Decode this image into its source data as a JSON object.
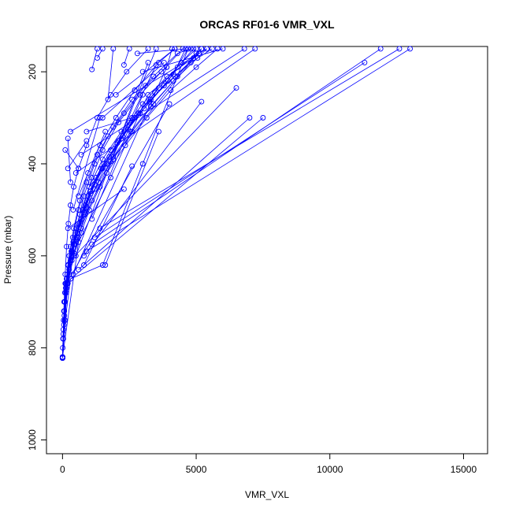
{
  "chart_data": {
    "type": "line",
    "title": "ORCAS RF01-6 VMR_VXL",
    "xlabel": "VMR_VXL",
    "ylabel": "Pressure (mbar)",
    "xlim": [
      -600,
      15900
    ],
    "ylim": [
      1030,
      145
    ],
    "y_reversed": true,
    "grid": false,
    "legend": "none",
    "xticks": [
      {
        "value": 0,
        "label": "0"
      },
      {
        "value": 5000,
        "label": "5000"
      },
      {
        "value": 10000,
        "label": "10000"
      },
      {
        "value": 15000,
        "label": "15000"
      }
    ],
    "yticks": [
      {
        "value": 200,
        "label": "200"
      },
      {
        "value": 400,
        "label": "400"
      },
      {
        "value": 600,
        "label": "600"
      },
      {
        "value": 800,
        "label": "800"
      },
      {
        "value": 1000,
        "label": "1000"
      }
    ],
    "color": "#0000ff",
    "series": [
      {
        "values": [
          [
            0,
            820
          ],
          [
            10,
            800
          ],
          [
            30,
            760
          ],
          [
            60,
            700
          ],
          [
            100,
            640
          ],
          [
            150,
            580
          ],
          [
            220,
            530
          ],
          [
            300,
            490
          ],
          [
            420,
            450
          ],
          [
            600,
            410
          ],
          [
            900,
            360
          ],
          [
            1300,
            300
          ],
          [
            1800,
            250
          ],
          [
            2400,
            200
          ],
          [
            3200,
            150
          ]
        ]
      },
      {
        "values": [
          [
            0,
            822
          ],
          [
            20,
            780
          ],
          [
            50,
            720
          ],
          [
            120,
            660
          ],
          [
            250,
            600
          ],
          [
            420,
            540
          ],
          [
            650,
            480
          ],
          [
            950,
            420
          ],
          [
            1400,
            360
          ],
          [
            2000,
            300
          ],
          [
            2700,
            240
          ],
          [
            3600,
            180
          ],
          [
            4200,
            150
          ]
        ]
      },
      {
        "values": [
          [
            0,
            820
          ],
          [
            40,
            740
          ],
          [
            90,
            680
          ],
          [
            200,
            620
          ],
          [
            380,
            560
          ],
          [
            600,
            500
          ],
          [
            900,
            440
          ],
          [
            1300,
            380
          ],
          [
            1900,
            320
          ],
          [
            2600,
            260
          ],
          [
            3400,
            210
          ],
          [
            4300,
            160
          ],
          [
            4800,
            150
          ]
        ]
      },
      {
        "values": [
          [
            0,
            821
          ],
          [
            30,
            770
          ],
          [
            80,
            700
          ],
          [
            180,
            640
          ],
          [
            330,
            590
          ],
          [
            520,
            540
          ],
          [
            800,
            470
          ],
          [
            1200,
            400
          ],
          [
            1700,
            340
          ],
          [
            2300,
            290
          ],
          [
            3100,
            230
          ],
          [
            3900,
            190
          ],
          [
            4100,
            150
          ]
        ]
      },
      {
        "values": [
          [
            0,
            822
          ],
          [
            50,
            750
          ],
          [
            150,
            670
          ],
          [
            300,
            610
          ],
          [
            500,
            560
          ],
          [
            750,
            500
          ],
          [
            1100,
            430
          ],
          [
            1500,
            370
          ],
          [
            2100,
            310
          ],
          [
            2900,
            250
          ],
          [
            3700,
            200
          ],
          [
            4500,
            150
          ]
        ]
      },
      {
        "values": [
          [
            0,
            820
          ],
          [
            100,
            680
          ],
          [
            220,
            620
          ],
          [
            400,
            570
          ],
          [
            650,
            510
          ],
          [
            1000,
            450
          ],
          [
            1500,
            390
          ],
          [
            2200,
            330
          ],
          [
            3000,
            270
          ],
          [
            3900,
            210
          ],
          [
            4900,
            170
          ],
          [
            5200,
            150
          ]
        ]
      },
      {
        "values": [
          [
            0,
            822
          ],
          [
            60,
            720
          ],
          [
            160,
            650
          ],
          [
            350,
            590
          ],
          [
            600,
            530
          ],
          [
            950,
            470
          ],
          [
            1450,
            410
          ],
          [
            2100,
            350
          ],
          [
            2900,
            290
          ],
          [
            3800,
            230
          ],
          [
            4800,
            180
          ],
          [
            5600,
            150
          ]
        ]
      },
      {
        "values": [
          [
            0,
            820
          ],
          [
            150,
            650
          ],
          [
            330,
            600
          ],
          [
            550,
            550
          ],
          [
            850,
            490
          ],
          [
            1250,
            430
          ],
          [
            1800,
            370
          ],
          [
            2500,
            310
          ],
          [
            3300,
            260
          ],
          [
            4200,
            210
          ],
          [
            5100,
            160
          ]
        ]
      },
      {
        "values": [
          [
            0,
            821
          ],
          [
            90,
            700
          ],
          [
            250,
            630
          ],
          [
            450,
            575
          ],
          [
            700,
            520
          ],
          [
            1050,
            460
          ],
          [
            1550,
            400
          ],
          [
            2250,
            340
          ],
          [
            3050,
            280
          ],
          [
            3950,
            220
          ],
          [
            4700,
            150
          ]
        ]
      },
      {
        "values": [
          [
            0,
            822
          ],
          [
            80,
            740
          ],
          [
            200,
            660
          ],
          [
            420,
            600
          ],
          [
            700,
            540
          ],
          [
            1100,
            480
          ],
          [
            1650,
            420
          ],
          [
            2350,
            360
          ],
          [
            3150,
            300
          ],
          [
            4050,
            240
          ],
          [
            5000,
            190
          ],
          [
            5800,
            150
          ]
        ]
      },
      {
        "values": [
          [
            0,
            820
          ],
          [
            30,
            780
          ],
          [
            70,
            730
          ],
          [
            140,
            680
          ],
          [
            260,
            640
          ],
          [
            450,
            595
          ],
          [
            700,
            550
          ],
          [
            1000,
            500
          ],
          [
            1400,
            450
          ],
          [
            1900,
            390
          ],
          [
            2600,
            330
          ],
          [
            3400,
            270
          ],
          [
            4300,
            210
          ],
          [
            5000,
            160
          ]
        ]
      },
      {
        "values": [
          [
            0,
            820
          ],
          [
            120,
            670
          ],
          [
            280,
            615
          ],
          [
            500,
            565
          ],
          [
            800,
            505
          ],
          [
            1200,
            445
          ],
          [
            1750,
            385
          ],
          [
            2450,
            325
          ],
          [
            3250,
            265
          ],
          [
            4150,
            205
          ],
          [
            4600,
            150
          ]
        ]
      },
      {
        "values": [
          [
            0,
            822
          ],
          [
            200,
            620
          ],
          [
            420,
            575
          ],
          [
            700,
            520
          ],
          [
            1050,
            465
          ],
          [
            1500,
            410
          ],
          [
            2050,
            355
          ],
          [
            2700,
            300
          ],
          [
            3450,
            245
          ],
          [
            4300,
            190
          ],
          [
            4900,
            150
          ]
        ]
      },
      {
        "values": [
          [
            0,
            821
          ],
          [
            250,
            600
          ],
          [
            550,
            550
          ],
          [
            900,
            495
          ],
          [
            1350,
            440
          ],
          [
            1900,
            385
          ],
          [
            2550,
            330
          ],
          [
            3300,
            275
          ],
          [
            4150,
            220
          ],
          [
            5050,
            170
          ],
          [
            5400,
            150
          ]
        ]
      },
      {
        "values": [
          [
            0,
            820
          ],
          [
            70,
            720
          ],
          [
            180,
            660
          ],
          [
            350,
            610
          ],
          [
            570,
            560
          ],
          [
            850,
            510
          ],
          [
            1200,
            455
          ],
          [
            1650,
            400
          ],
          [
            2200,
            345
          ],
          [
            2850,
            290
          ],
          [
            3600,
            235
          ],
          [
            4450,
            180
          ],
          [
            5000,
            150
          ]
        ]
      },
      {
        "values": [
          [
            150,
            660
          ],
          [
            4000,
            270
          ]
        ]
      },
      {
        "values": [
          [
            400,
            640
          ],
          [
            3900,
            190
          ]
        ]
      },
      {
        "values": [
          [
            300,
            580
          ],
          [
            3500,
            185
          ]
        ]
      },
      {
        "values": [
          [
            500,
            600
          ],
          [
            3200,
            180
          ]
        ]
      },
      {
        "values": [
          [
            800,
            620
          ],
          [
            2600,
            405
          ]
        ]
      },
      {
        "values": [
          [
            200,
            540
          ],
          [
            2300,
            455
          ]
        ]
      },
      {
        "values": [
          [
            100,
            660
          ],
          [
            7500,
            300
          ]
        ]
      },
      {
        "values": [
          [
            600,
            630
          ],
          [
            7000,
            300
          ]
        ]
      },
      {
        "values": [
          [
            300,
            610
          ],
          [
            6500,
            235
          ]
        ]
      },
      {
        "values": [
          [
            800,
            600
          ],
          [
            5200,
            265
          ]
        ]
      },
      {
        "values": [
          [
            1200,
            560
          ],
          [
            11300,
            180
          ]
        ]
      },
      {
        "values": [
          [
            1400,
            540
          ],
          [
            12600,
            150
          ]
        ]
      },
      {
        "values": [
          [
            900,
            590
          ],
          [
            13000,
            150
          ]
        ]
      },
      {
        "values": [
          [
            1100,
            575
          ],
          [
            11900,
            150
          ]
        ]
      },
      {
        "values": [
          [
            500,
            420
          ],
          [
            7200,
            150
          ]
        ]
      },
      {
        "values": [
          [
            700,
            380
          ],
          [
            6800,
            150
          ]
        ]
      },
      {
        "values": [
          [
            300,
            330
          ],
          [
            5400,
            150
          ]
        ]
      },
      {
        "values": [
          [
            900,
            330
          ],
          [
            2600,
            300
          ]
        ]
      },
      {
        "values": [
          [
            1600,
            620
          ],
          [
            3600,
            330
          ]
        ]
      },
      {
        "values": [
          [
            1100,
            520
          ],
          [
            3000,
            250
          ]
        ]
      },
      {
        "values": [
          [
            1800,
            395
          ],
          [
            3500,
            150
          ]
        ]
      },
      {
        "values": [
          [
            1300,
            170
          ],
          [
            1500,
            150
          ]
        ]
      },
      {
        "values": [
          [
            1100,
            195
          ],
          [
            1300,
            150
          ]
        ]
      },
      {
        "values": [
          [
            1700,
            260
          ],
          [
            1900,
            150
          ]
        ]
      },
      {
        "values": [
          [
            2300,
            185
          ],
          [
            2500,
            150
          ]
        ]
      },
      {
        "values": [
          [
            400,
            500
          ],
          [
            1400,
            300
          ]
        ]
      },
      {
        "values": [
          [
            600,
            470
          ],
          [
            1600,
            330
          ]
        ]
      },
      {
        "values": [
          [
            200,
            410
          ],
          [
            900,
            350
          ]
        ]
      },
      {
        "values": [
          [
            100,
            370
          ],
          [
            600,
            410
          ]
        ]
      },
      {
        "values": [
          [
            200,
            345
          ],
          [
            300,
            440
          ]
        ]
      },
      {
        "values": [
          [
            2000,
            250
          ],
          [
            4200,
            150
          ]
        ]
      },
      {
        "values": [
          [
            3000,
            200
          ],
          [
            6000,
            150
          ]
        ]
      },
      {
        "values": [
          [
            2800,
            160
          ],
          [
            4600,
            150
          ]
        ]
      },
      {
        "values": [
          [
            1500,
            300
          ],
          [
            3800,
            180
          ]
        ]
      },
      {
        "values": [
          [
            1000,
            450
          ],
          [
            5200,
            150
          ]
        ]
      },
      {
        "values": [
          [
            0,
            822
          ],
          [
            100,
            740
          ],
          [
            300,
            650
          ],
          [
            1500,
            620
          ],
          [
            3000,
            400
          ],
          [
            4700,
            150
          ]
        ]
      },
      {
        "values": [
          [
            0,
            820
          ],
          [
            600,
            570
          ],
          [
            1800,
            430
          ],
          [
            3200,
            250
          ],
          [
            5200,
            150
          ]
        ]
      }
    ]
  }
}
